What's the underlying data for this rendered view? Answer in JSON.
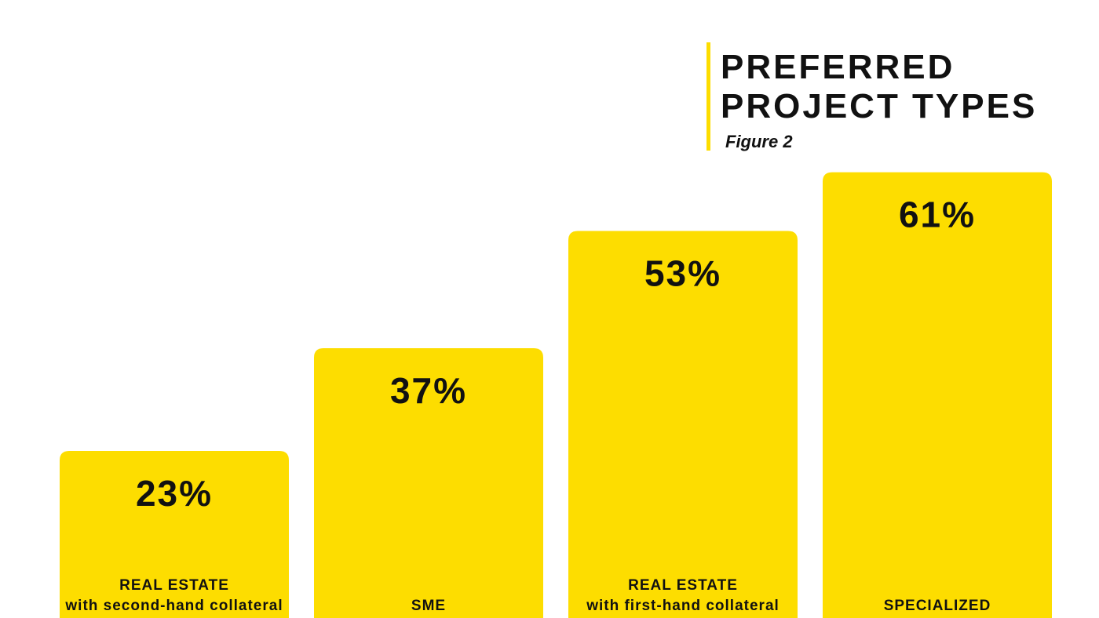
{
  "title": {
    "line1": "PREFERRED",
    "line2": "PROJECT TYPES",
    "subtitle": "Figure 2"
  },
  "colors": {
    "bar": "#FDDD00",
    "text": "#111111",
    "background": "#FFFFFF"
  },
  "chart_data": {
    "type": "bar",
    "title": "PREFERRED PROJECT TYPES",
    "subtitle": "Figure 2",
    "categories": [
      [
        "REAL ESTATE",
        "with second-hand collateral"
      ],
      [
        "SME"
      ],
      [
        "REAL ESTATE",
        "with first-hand collateral"
      ],
      [
        "SPECIALIZED"
      ]
    ],
    "values": [
      23,
      37,
      53,
      61
    ],
    "value_labels": [
      "23%",
      "37%",
      "53%",
      "61%"
    ],
    "unit": "%",
    "ylim": [
      0,
      100
    ],
    "grid": false,
    "legend": "none"
  }
}
